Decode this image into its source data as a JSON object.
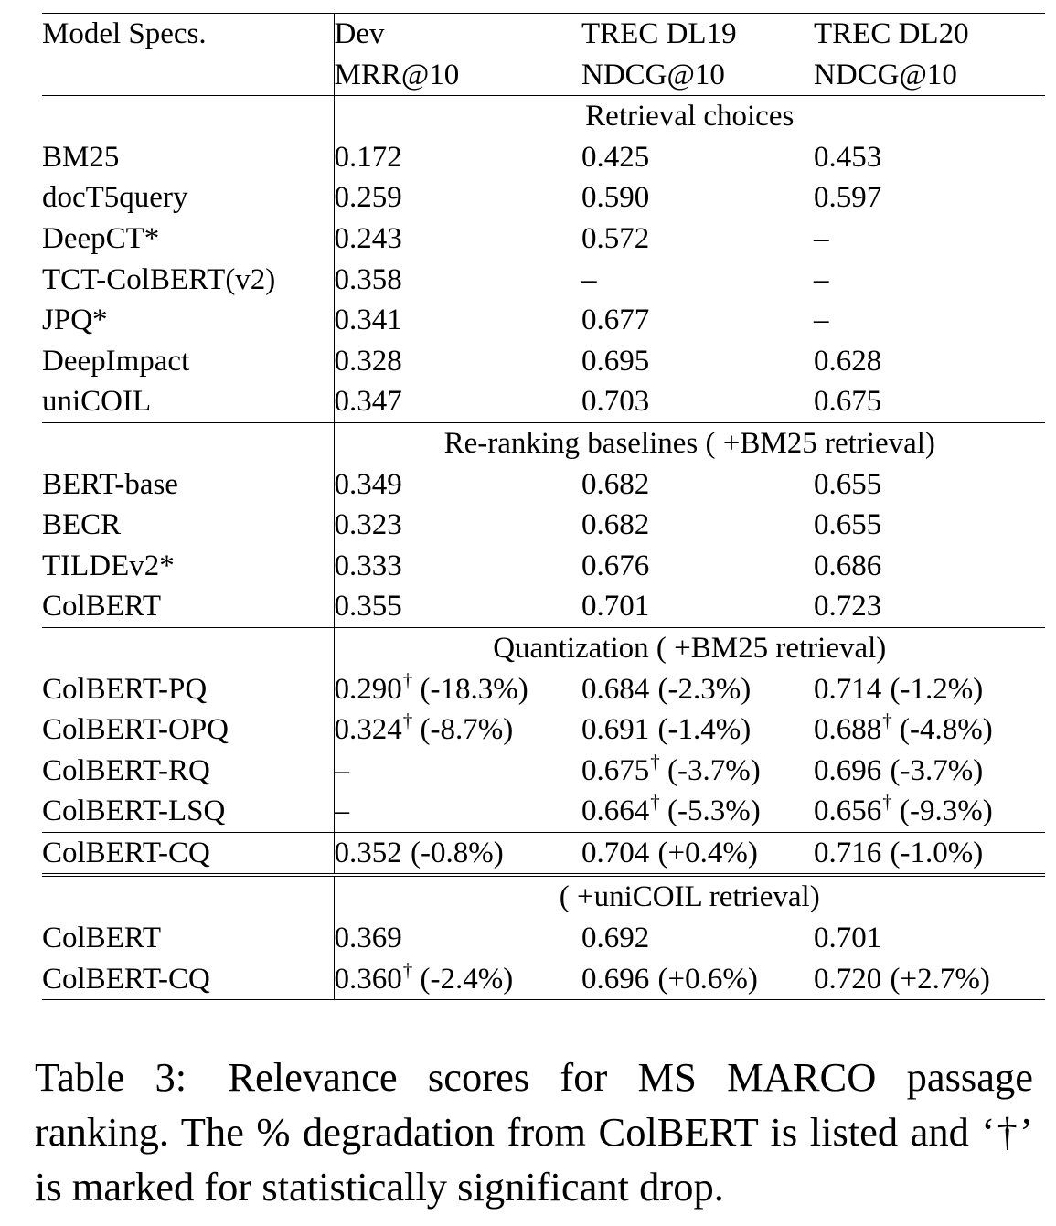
{
  "table": {
    "header": {
      "model_col": "Model Specs.",
      "col1_line1": "Dev",
      "col1_line2": "MRR@10",
      "col2_line1": "TREC DL19",
      "col2_line2": "NDCG@10",
      "col3_line1": "TREC DL20",
      "col3_line2": "NDCG@10"
    },
    "sections": [
      {
        "title": "Retrieval choices",
        "rows": [
          {
            "name": "BM25",
            "dev": "0.172",
            "dev_dag": "",
            "dev_pct": "",
            "dl19": "0.425",
            "dl19_dag": "",
            "dl19_pct": "",
            "dl20": "0.453",
            "dl20_dag": "",
            "dl20_pct": ""
          },
          {
            "name": "docT5query",
            "dev": "0.259",
            "dev_dag": "",
            "dev_pct": "",
            "dl19": "0.590",
            "dl19_dag": "",
            "dl19_pct": "",
            "dl20": "0.597",
            "dl20_dag": "",
            "dl20_pct": ""
          },
          {
            "name": "DeepCT*",
            "dev": "0.243",
            "dev_dag": "",
            "dev_pct": "",
            "dl19": "0.572",
            "dl19_dag": "",
            "dl19_pct": "",
            "dl20": "–",
            "dl20_dag": "",
            "dl20_pct": ""
          },
          {
            "name": "TCT-ColBERT(v2)",
            "dev": "0.358",
            "dev_dag": "",
            "dev_pct": "",
            "dl19": "–",
            "dl19_dag": "",
            "dl19_pct": "",
            "dl20": "–",
            "dl20_dag": "",
            "dl20_pct": ""
          },
          {
            "name": "JPQ*",
            "dev": "0.341",
            "dev_dag": "",
            "dev_pct": "",
            "dl19": "0.677",
            "dl19_dag": "",
            "dl19_pct": "",
            "dl20": "–",
            "dl20_dag": "",
            "dl20_pct": ""
          },
          {
            "name": "DeepImpact",
            "dev": "0.328",
            "dev_dag": "",
            "dev_pct": "",
            "dl19": "0.695",
            "dl19_dag": "",
            "dl19_pct": "",
            "dl20": "0.628",
            "dl20_dag": "",
            "dl20_pct": ""
          },
          {
            "name": "uniCOIL",
            "dev": "0.347",
            "dev_dag": "",
            "dev_pct": "",
            "dl19": "0.703",
            "dl19_dag": "",
            "dl19_pct": "",
            "dl20": "0.675",
            "dl20_dag": "",
            "dl20_pct": ""
          }
        ]
      },
      {
        "title": "Re-ranking baselines ( +BM25 retrieval)",
        "rows": [
          {
            "name": "BERT-base",
            "dev": "0.349",
            "dev_dag": "",
            "dev_pct": "",
            "dl19": "0.682",
            "dl19_dag": "",
            "dl19_pct": "",
            "dl20": "0.655",
            "dl20_dag": "",
            "dl20_pct": ""
          },
          {
            "name": "BECR",
            "dev": "0.323",
            "dev_dag": "",
            "dev_pct": "",
            "dl19": "0.682",
            "dl19_dag": "",
            "dl19_pct": "",
            "dl20": "0.655",
            "dl20_dag": "",
            "dl20_pct": ""
          },
          {
            "name": "TILDEv2*",
            "dev": "0.333",
            "dev_dag": "",
            "dev_pct": "",
            "dl19": "0.676",
            "dl19_dag": "",
            "dl19_pct": "",
            "dl20": "0.686",
            "dl20_dag": "",
            "dl20_pct": ""
          },
          {
            "name": "ColBERT",
            "dev": "0.355",
            "dev_dag": "",
            "dev_pct": "",
            "dl19": "0.701",
            "dl19_dag": "",
            "dl19_pct": "",
            "dl20": "0.723",
            "dl20_dag": "",
            "dl20_pct": ""
          }
        ]
      },
      {
        "title": "Quantization ( +BM25 retrieval)",
        "rows": [
          {
            "name": "ColBERT-PQ",
            "dev": "0.290",
            "dev_dag": "†",
            "dev_pct": "(-18.3%)",
            "dl19": "0.684",
            "dl19_dag": "",
            "dl19_pct": "(-2.3%)",
            "dl20": "0.714",
            "dl20_dag": "",
            "dl20_pct": "(-1.2%)"
          },
          {
            "name": "ColBERT-OPQ",
            "dev": "0.324",
            "dev_dag": "†",
            "dev_pct": "(-8.7%)",
            "dl19": "0.691",
            "dl19_dag": "",
            "dl19_pct": "(-1.4%)",
            "dl20": "0.688",
            "dl20_dag": "†",
            "dl20_pct": "(-4.8%)"
          },
          {
            "name": "ColBERT-RQ",
            "dev": "–",
            "dev_dag": "",
            "dev_pct": "",
            "dl19": "0.675",
            "dl19_dag": "†",
            "dl19_pct": "(-3.7%)",
            "dl20": "0.696",
            "dl20_dag": "",
            "dl20_pct": "(-3.7%)"
          },
          {
            "name": "ColBERT-LSQ",
            "dev": "–",
            "dev_dag": "",
            "dev_pct": "",
            "dl19": "0.664",
            "dl19_dag": "†",
            "dl19_pct": "(-5.3%)",
            "dl20": "0.656",
            "dl20_dag": "†",
            "dl20_pct": "(-9.3%)"
          }
        ],
        "cq_row": {
          "name": "ColBERT-CQ",
          "dev": "0.352",
          "dev_dag": "",
          "dev_pct": "(-0.8%)",
          "dl19": "0.704",
          "dl19_dag": "",
          "dl19_pct": "(+0.4%)",
          "dl20": "0.716",
          "dl20_dag": "",
          "dl20_pct": "(-1.0%)"
        }
      },
      {
        "title": "( +uniCOIL retrieval)",
        "rows": [
          {
            "name": "ColBERT",
            "dev": "0.369",
            "dev_dag": "",
            "dev_pct": "",
            "dl19": "0.692",
            "dl19_dag": "",
            "dl19_pct": "",
            "dl20": "0.701",
            "dl20_dag": "",
            "dl20_pct": ""
          },
          {
            "name": "ColBERT-CQ",
            "dev": "0.360",
            "dev_dag": "†",
            "dev_pct": "(-2.4%)",
            "dl19": "0.696",
            "dl19_dag": "",
            "dl19_pct": "(+0.6%)",
            "dl20": "0.720",
            "dl20_dag": "",
            "dl20_pct": "(+2.7%)"
          }
        ]
      }
    ]
  },
  "caption": {
    "label": "Table 3:",
    "text": "Relevance scores for MS MARCO passage ranking. The % degradation from ColBERT is listed and ‘†’ is marked for statistically significant drop."
  }
}
